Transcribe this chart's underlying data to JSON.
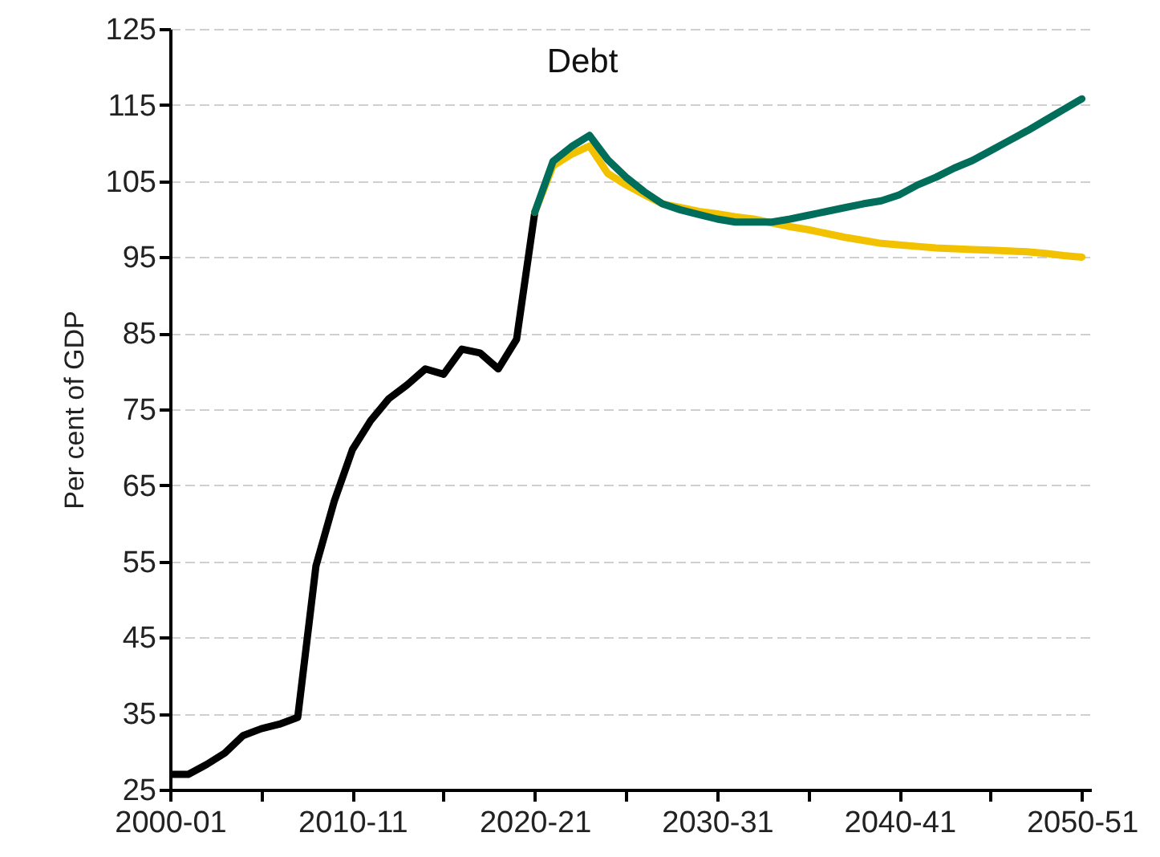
{
  "chart_data": {
    "type": "line",
    "title": "Debt",
    "ylabel": "Per cent of GDP",
    "ylim": [
      25,
      125
    ],
    "categories": [
      "2000-01",
      null,
      null,
      null,
      null,
      null,
      null,
      null,
      null,
      null,
      "2010-11",
      null,
      null,
      null,
      null,
      null,
      null,
      null,
      null,
      null,
      "2020-21",
      null,
      null,
      null,
      null,
      null,
      null,
      null,
      null,
      null,
      "2030-31",
      null,
      null,
      null,
      null,
      null,
      null,
      null,
      null,
      null,
      "2040-41",
      null,
      null,
      null,
      null,
      null,
      null,
      null,
      null,
      null,
      "2050-51"
    ],
    "yticks": [
      25,
      35,
      45,
      55,
      65,
      75,
      85,
      95,
      105,
      115,
      125
    ],
    "grid": "y",
    "series": [
      {
        "color": "#000000",
        "values": [
          27.0,
          27.0,
          28.3,
          29.8,
          32.1,
          33.0,
          33.6,
          34.5,
          54.4,
          62.9,
          69.7,
          73.5,
          76.4,
          78.2,
          80.3,
          79.6,
          82.9,
          82.4,
          80.3,
          84.2,
          100.9,
          null,
          null,
          null,
          null,
          null,
          null,
          null,
          null,
          null,
          null,
          null,
          null,
          null,
          null,
          null,
          null,
          null,
          null,
          null,
          null,
          null,
          null,
          null,
          null,
          null,
          null,
          null,
          null,
          null,
          null
        ]
      },
      {
        "color": "#f2c200",
        "values": [
          null,
          null,
          null,
          null,
          null,
          null,
          null,
          null,
          null,
          null,
          null,
          null,
          null,
          null,
          null,
          null,
          null,
          null,
          null,
          null,
          100.9,
          107.0,
          108.5,
          109.6,
          106.0,
          104.5,
          103.2,
          102.0,
          101.5,
          101.0,
          100.7,
          100.3,
          100.0,
          99.5,
          99.0,
          98.6,
          98.1,
          97.6,
          97.2,
          96.8,
          96.6,
          96.4,
          96.2,
          96.1,
          96.0,
          95.9,
          95.8,
          95.7,
          95.5,
          95.2,
          95.0
        ]
      },
      {
        "color": "#006e5a",
        "values": [
          null,
          null,
          null,
          null,
          null,
          null,
          null,
          null,
          null,
          null,
          null,
          null,
          null,
          null,
          null,
          null,
          null,
          null,
          null,
          null,
          100.9,
          107.6,
          109.5,
          111.0,
          107.8,
          105.5,
          103.6,
          102.0,
          101.2,
          100.6,
          100.0,
          99.6,
          99.6,
          99.6,
          100.0,
          100.5,
          101.0,
          101.5,
          102.0,
          102.4,
          103.2,
          104.5,
          105.5,
          106.7,
          107.7,
          109.0,
          110.3,
          111.6,
          113.0,
          114.4,
          115.8
        ]
      }
    ]
  }
}
